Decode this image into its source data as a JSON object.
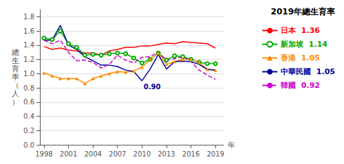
{
  "chart_data": {
    "type": "line",
    "title": "2019年總生育率",
    "ylabel": "總生育率（人）",
    "xlabel": "年",
    "x": [
      1998,
      1999,
      2000,
      2001,
      2002,
      2003,
      2004,
      2005,
      2006,
      2007,
      2008,
      2009,
      2010,
      2011,
      2012,
      2013,
      2014,
      2015,
      2016,
      2017,
      2018,
      2019
    ],
    "xlim": [
      1997.5,
      2020.0
    ],
    "xticks": [
      1998,
      2001,
      2004,
      2007,
      2010,
      2013,
      2016,
      2019
    ],
    "ylim": [
      0,
      1.9
    ],
    "yticks": [
      {
        "value": 0,
        "label": "0.0"
      },
      0.2,
      0.4,
      0.6,
      0.8,
      {
        "value": 1.0,
        "label": "1.0"
      },
      1.2,
      1.4,
      1.6,
      1.8
    ],
    "grid": true,
    "legend": "right",
    "series": [
      {
        "name": "日本",
        "color": "#ff0000",
        "marker": "none",
        "line_style": "solid",
        "legend_value": "1.36",
        "values": [
          1.38,
          1.34,
          1.36,
          1.33,
          1.32,
          1.29,
          1.29,
          1.26,
          1.32,
          1.34,
          1.37,
          1.37,
          1.39,
          1.39,
          1.41,
          1.43,
          1.42,
          1.45,
          1.44,
          1.43,
          1.42,
          1.36
        ]
      },
      {
        "name": "新加坡",
        "color": "#00aa00",
        "marker": "circle",
        "line_style": "solid",
        "legend_value": "1.14",
        "values": [
          1.5,
          1.48,
          1.6,
          1.42,
          1.37,
          1.26,
          1.27,
          1.26,
          1.28,
          1.29,
          1.28,
          1.22,
          1.15,
          1.2,
          1.29,
          1.19,
          1.25,
          1.24,
          1.2,
          1.16,
          1.14,
          1.14
        ]
      },
      {
        "name": "香港",
        "color": "#ff8c00",
        "marker": "triangle",
        "line_style": "solid",
        "legend_value": "1.05",
        "values": [
          1.01,
          0.97,
          0.93,
          0.93,
          0.93,
          0.86,
          0.93,
          0.97,
          1.0,
          1.03,
          1.02,
          1.04,
          1.09,
          1.2,
          1.29,
          1.13,
          1.17,
          1.2,
          1.2,
          1.16,
          1.06,
          1.05
        ]
      },
      {
        "name": "中華民國",
        "color": "#000099",
        "marker": "none",
        "line_style": "solid",
        "legend_value": "1.05",
        "values": [
          1.47,
          1.47,
          1.68,
          1.4,
          1.34,
          1.24,
          1.18,
          1.12,
          1.12,
          1.1,
          1.05,
          1.03,
          0.9,
          1.065,
          1.27,
          1.065,
          1.17,
          1.175,
          1.17,
          1.13,
          1.06,
          1.05
        ]
      },
      {
        "name": "韓國",
        "color": "#cc00cc",
        "marker": "none",
        "line_style": "dashed",
        "legend_value": "0.92",
        "values": [
          1.47,
          1.42,
          1.47,
          1.3,
          1.18,
          1.19,
          1.16,
          1.08,
          1.13,
          1.26,
          1.19,
          1.15,
          1.23,
          1.24,
          1.3,
          1.19,
          1.21,
          1.24,
          1.17,
          1.05,
          0.98,
          0.92
        ]
      }
    ],
    "annotations": [
      {
        "text": "0.90",
        "x": 2010.2,
        "y": 0.875,
        "color": "#000099"
      }
    ]
  }
}
